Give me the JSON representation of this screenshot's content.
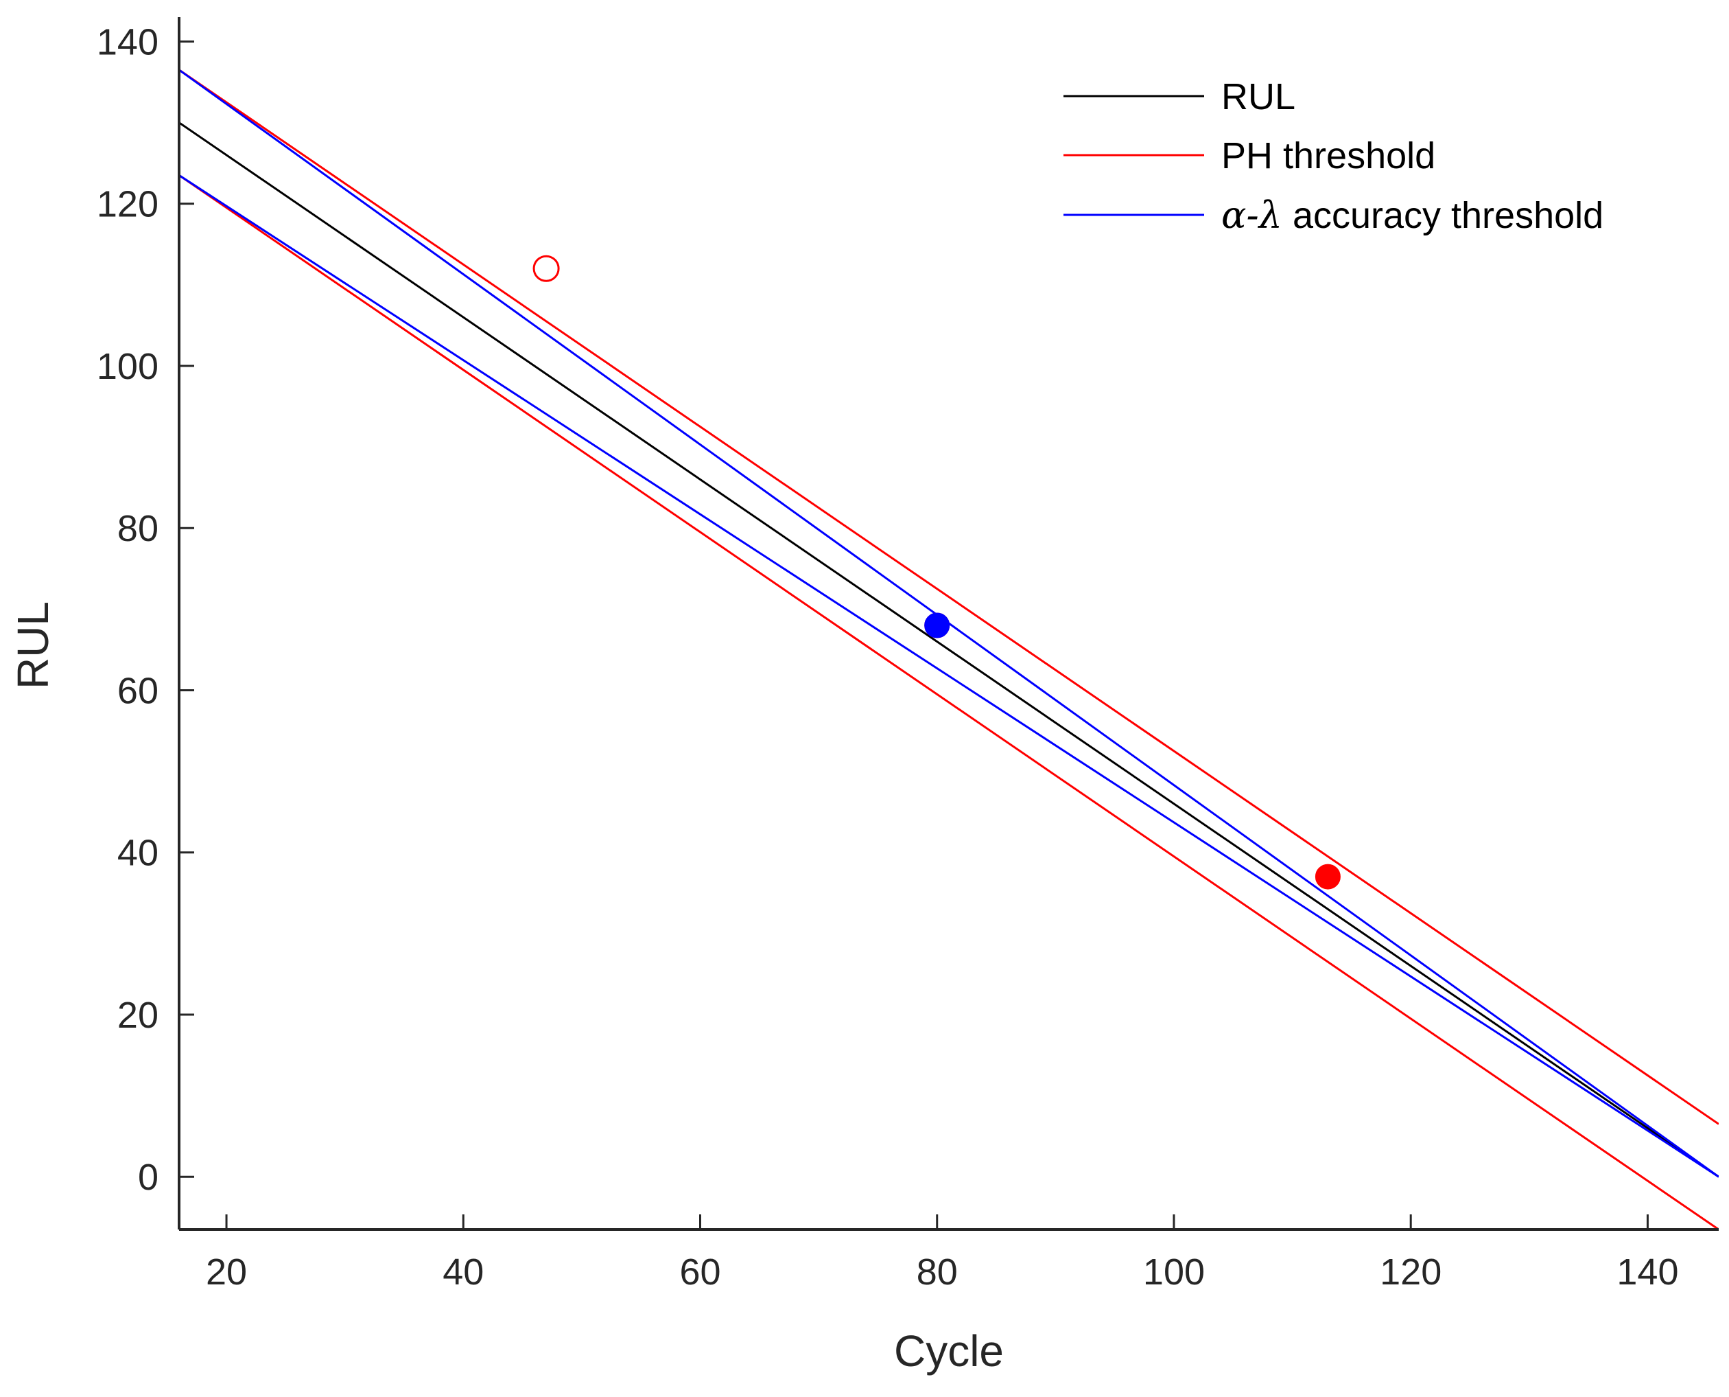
{
  "chart_data": {
    "type": "line",
    "title": "",
    "xlabel": "Cycle",
    "ylabel": "RUL",
    "xlim": [
      16,
      146
    ],
    "ylim": [
      -6.5,
      143
    ],
    "xticks": [
      20,
      40,
      60,
      80,
      100,
      120,
      140
    ],
    "yticks": [
      0,
      20,
      40,
      60,
      80,
      100,
      120,
      140
    ],
    "grid": false,
    "legend_position": "top-right",
    "eol": 146,
    "series": [
      {
        "name": "RUL",
        "color": "#000000",
        "x": [
          16,
          146
        ],
        "y": [
          130,
          0
        ]
      },
      {
        "name": "PH threshold",
        "color": "#ff0000",
        "x": [
          16,
          146
        ],
        "y": [
          136.5,
          6.5
        ]
      },
      {
        "name": "PH threshold (lower)",
        "color": "#ff0000",
        "x": [
          16,
          146
        ],
        "y": [
          123.5,
          -6.5
        ]
      },
      {
        "name": "α-λ accuracy threshold",
        "color": "#0000ff",
        "x": [
          16,
          146
        ],
        "y": [
          123.5,
          0
        ]
      },
      {
        "name": "α-λ accuracy threshold (lower)",
        "color": "#0000ff",
        "x": [
          16,
          146
        ],
        "y": [
          136.5,
          0
        ]
      }
    ],
    "markers": [
      {
        "name": "open-red",
        "x": 47,
        "y": 112,
        "color": "#ff0000",
        "fill": "none"
      },
      {
        "name": "filled-red",
        "x": 80,
        "y": 68,
        "color": "#ff0000",
        "fill": "#ff0000"
      },
      {
        "name": "filled-blue",
        "x": 80,
        "y": 68,
        "color": "#0000ff",
        "fill": "#0000ff"
      },
      {
        "name": "filled-red",
        "x": 113,
        "y": 37,
        "color": "#ff0000",
        "fill": "#ff0000"
      }
    ],
    "legend": [
      {
        "label": "RUL",
        "color": "#000000"
      },
      {
        "label": "PH threshold",
        "color": "#ff0000"
      },
      {
        "label_greek": "α-λ",
        "label_rest": " accuracy threshold",
        "color": "#0000ff"
      }
    ]
  }
}
